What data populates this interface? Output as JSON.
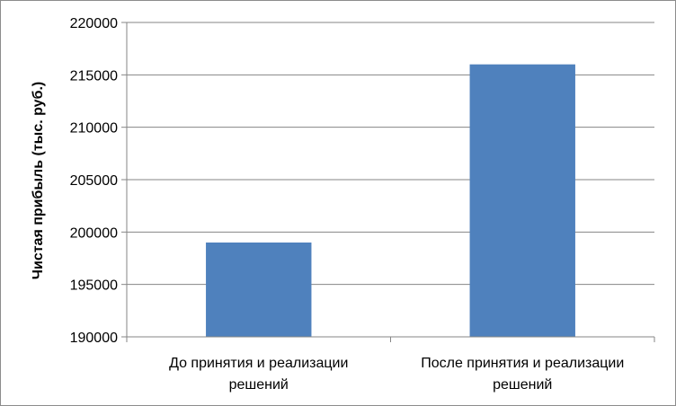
{
  "chart_data": {
    "type": "bar",
    "categories": [
      [
        "До принятия и реализации",
        "решений"
      ],
      [
        "После принятия и реализации",
        "решений"
      ]
    ],
    "values": [
      199000,
      216000
    ],
    "title": "",
    "xlabel": "",
    "ylabel": "Чистая прибыль (тыс. руб.)",
    "ylim": [
      190000,
      220000
    ],
    "yticks": [
      190000,
      195000,
      200000,
      205000,
      210000,
      215000,
      220000
    ],
    "grid": true,
    "legend": "none",
    "bar_color": "#4f81bd",
    "grid_color": "#868686"
  }
}
